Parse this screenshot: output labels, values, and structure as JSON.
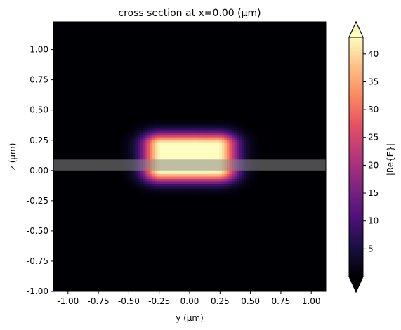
{
  "chart_data": {
    "type": "heatmap",
    "title": "cross section at x=0.00 (μm)",
    "xlabel": "y (μm)",
    "ylabel": "z (μm)",
    "xlim": [
      -1.12,
      1.12
    ],
    "ylim": [
      -1.0,
      1.23
    ],
    "xticks": [
      -1.0,
      -0.75,
      -0.5,
      -0.25,
      0.0,
      0.25,
      0.5,
      0.75,
      1.0
    ],
    "xtick_labels": [
      "-1.00",
      "-0.75",
      "-0.50",
      "-0.25",
      "0.00",
      "0.25",
      "0.50",
      "0.75",
      "1.00"
    ],
    "yticks": [
      -1.0,
      -0.75,
      -0.5,
      -0.25,
      0.0,
      0.25,
      0.5,
      0.75,
      1.0
    ],
    "ytick_labels": [
      "-1.00",
      "-0.75",
      "-0.50",
      "-0.25",
      "0.00",
      "0.25",
      "0.50",
      "0.75",
      "1.00"
    ],
    "colorbar": {
      "label": "|Re{E}|",
      "colormap": "magma",
      "min": 0,
      "max": 43,
      "extend": "both",
      "ticks": [
        5,
        10,
        15,
        20,
        25,
        30,
        35,
        40
      ],
      "tick_labels": [
        "5",
        "10",
        "15",
        "20",
        "25",
        "30",
        "35",
        "40"
      ]
    },
    "field": {
      "peak": 43,
      "center": [
        0.0,
        0.11
      ],
      "core_width": [
        0.23,
        0.11
      ],
      "decay": [
        0.2,
        0.12
      ]
    },
    "overlay": {
      "y_range": [
        -1.12,
        1.12
      ],
      "z_range": [
        0.0,
        0.09
      ],
      "color": "#8a8a8a",
      "opacity": 0.55
    }
  }
}
